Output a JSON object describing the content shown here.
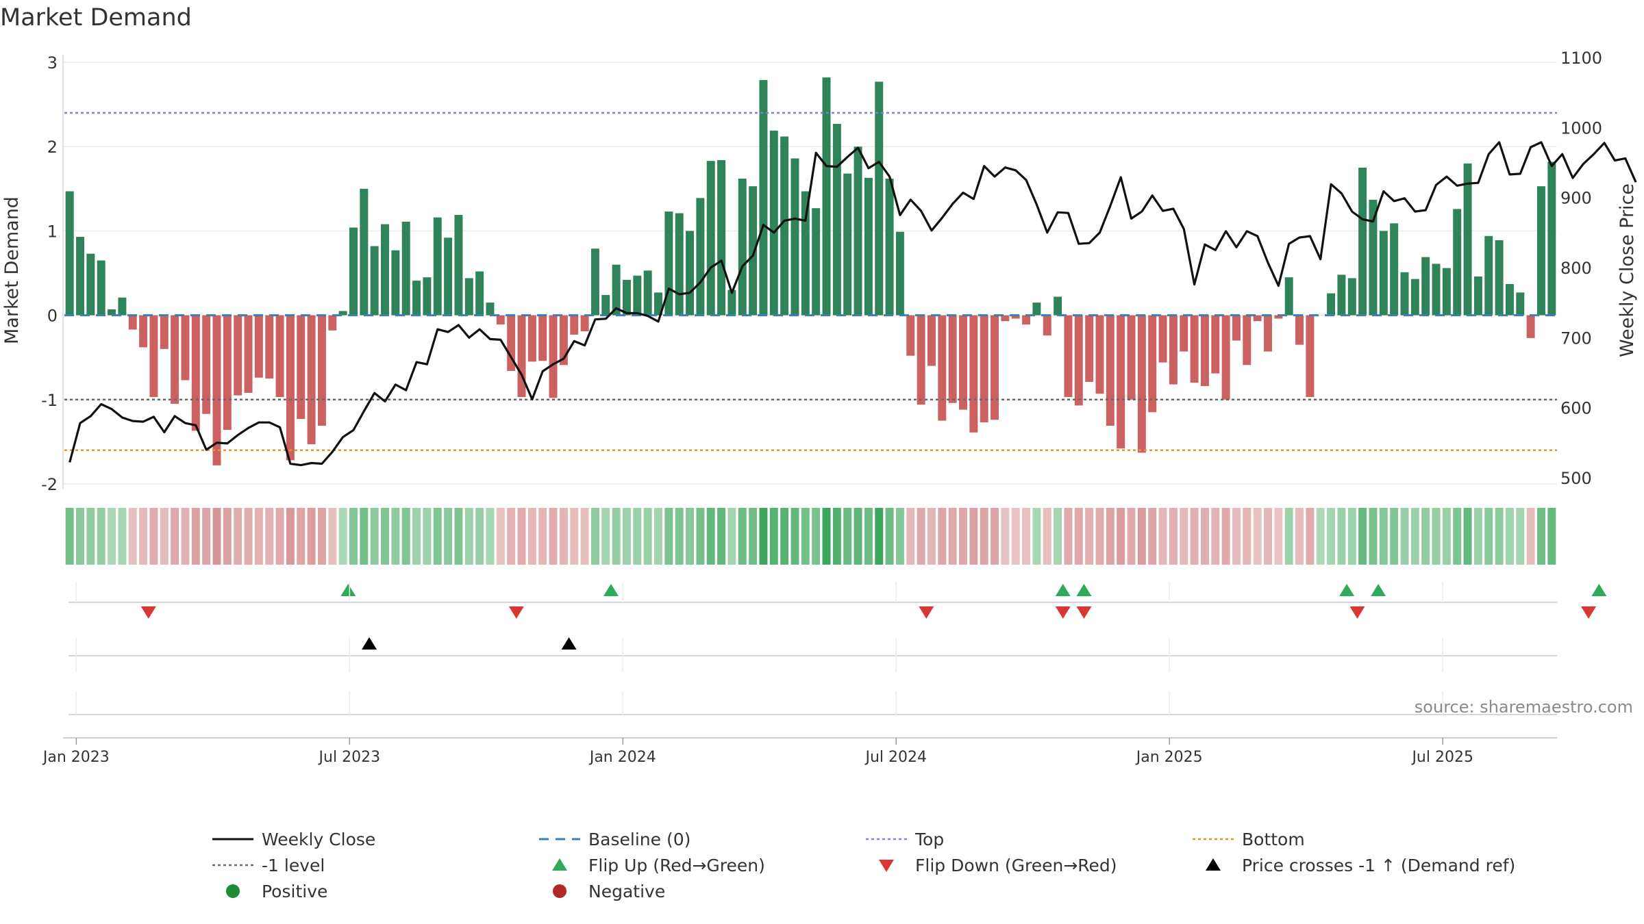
{
  "chart_data": {
    "type": "bar+line",
    "title": "Market Demand",
    "ylabel_left": "Market Demand",
    "ylabel_right": "Weekly Close Price",
    "ylim_left": [
      -2.0,
      3.0
    ],
    "ylim_right": [
      500,
      1100
    ],
    "yticks_left": [
      "3",
      "2",
      "1",
      "0",
      "-1",
      "-2"
    ],
    "yticks_right": [
      "1100",
      "1000",
      "900",
      "800",
      "700",
      "600",
      "500"
    ],
    "reference_lines": {
      "top": 2.4,
      "minus_one": -1.0,
      "bottom": -1.6,
      "baseline": 0
    },
    "x_ticks": [
      {
        "label": "Jan 2023",
        "week": 1
      },
      {
        "label": "Jul 2023",
        "week": 27
      },
      {
        "label": "Jan 2024",
        "week": 53
      },
      {
        "label": "Jul 2024",
        "week": 79
      },
      {
        "label": "Jan 2025",
        "week": 105
      },
      {
        "label": "Jul 2025",
        "week": 131
      }
    ],
    "series": [
      {
        "name": "Market Demand",
        "type": "bar",
        "values": [
          1.47,
          0.93,
          0.73,
          0.65,
          0.07,
          0.21,
          -0.17,
          -0.38,
          -0.97,
          -0.4,
          -1.05,
          -0.77,
          -1.37,
          -1.17,
          -1.78,
          -1.36,
          -0.95,
          -0.92,
          -0.74,
          -0.75,
          -0.97,
          -1.72,
          -1.23,
          -1.53,
          -1.31,
          -0.18,
          0.05,
          1.04,
          1.5,
          0.82,
          1.08,
          0.77,
          1.11,
          0.41,
          0.45,
          1.16,
          0.92,
          1.19,
          0.44,
          0.52,
          0.15,
          -0.11,
          -0.66,
          -0.97,
          -0.55,
          -0.54,
          -0.98,
          -0.59,
          -0.23,
          -0.19,
          0.79,
          0.24,
          0.6,
          0.42,
          0.47,
          0.53,
          0.27,
          1.23,
          1.21,
          1.0,
          1.39,
          1.83,
          1.84,
          0.3,
          1.62,
          1.53,
          2.79,
          2.19,
          2.12,
          1.86,
          1.47,
          1.27,
          2.82,
          2.27,
          1.68,
          2.0,
          1.63,
          2.77,
          1.62,
          0.99,
          -0.48,
          -1.06,
          -0.6,
          -1.25,
          -1.04,
          -1.12,
          -1.39,
          -1.27,
          -1.24,
          -0.07,
          -0.04,
          -0.11,
          0.15,
          -0.24,
          0.22,
          -0.97,
          -1.07,
          -0.79,
          -0.93,
          -1.31,
          -1.58,
          -1.0,
          -1.63,
          -1.15,
          -0.56,
          -0.82,
          -0.43,
          -0.8,
          -0.84,
          -0.69,
          -1.0,
          -0.3,
          -0.59,
          -0.07,
          -0.43,
          -0.04,
          0.45,
          -0.35,
          -0.97,
          0.0,
          0.26,
          0.48,
          0.44,
          1.75,
          1.37,
          1.0,
          1.09,
          0.51,
          0.43,
          0.69,
          0.61,
          0.56,
          1.26,
          1.8,
          0.46,
          0.94,
          0.89,
          0.37,
          0.27,
          -0.27,
          1.53,
          1.82
        ]
      },
      {
        "name": "Weekly Close",
        "type": "line",
        "axis": "right",
        "values": [
          522,
          578,
          588,
          605,
          598,
          586,
          581,
          580,
          587,
          565,
          588,
          578,
          575,
          540,
          550,
          549,
          561,
          571,
          579,
          579,
          572,
          520,
          518,
          521,
          520,
          537,
          558,
          568,
          595,
          621,
          609,
          633,
          625,
          665,
          662,
          712,
          708,
          718,
          700,
          712,
          698,
          697,
          672,
          647,
          612,
          652,
          662,
          670,
          695,
          689,
          726,
          727,
          742,
          735,
          735,
          731,
          723,
          770,
          762,
          764,
          779,
          800,
          810,
          764,
          802,
          817,
          861,
          850,
          867,
          870,
          867,
          964,
          945,
          944,
          958,
          971,
          942,
          951,
          930,
          875,
          897,
          881,
          853,
          871,
          891,
          907,
          898,
          945,
          930,
          943,
          939,
          925,
          890,
          850,
          879,
          878,
          834,
          835,
          850,
          888,
          929,
          870,
          880,
          903,
          881,
          884,
          855,
          776,
          833,
          825,
          852,
          829,
          852,
          845,
          807,
          774,
          834,
          843,
          845,
          812,
          919,
          906,
          880,
          869,
          866,
          909,
          895,
          899,
          880,
          882,
          918,
          930,
          917,
          920,
          921,
          962,
          979,
          933,
          934,
          972,
          979,
          945,
          962,
          928,
          948,
          962,
          978,
          953,
          956,
          922
        ]
      }
    ],
    "flip_up_weeks": [
      27,
      52,
      95,
      97,
      122,
      125,
      146
    ],
    "flip_down_weeks": [
      8,
      43,
      82,
      95,
      97,
      123,
      145
    ],
    "price_cross_weeks": [
      29,
      48
    ],
    "source": "source: sharemaestro.com",
    "legend": [
      {
        "label": "Weekly Close",
        "kind": "line",
        "color": "#111111"
      },
      {
        "label": "Baseline (0)",
        "kind": "dash",
        "color": "#3a7fb5"
      },
      {
        "label": "Top",
        "kind": "dot",
        "color": "#7b7fd6"
      },
      {
        "label": "Bottom",
        "kind": "dot",
        "color": "#e8962f"
      },
      {
        "label": "-1 level",
        "kind": "dot",
        "color": "#6a6a6a"
      },
      {
        "label": "Flip Up (Red→Green)",
        "kind": "tri-up",
        "color": "#2eaa5a"
      },
      {
        "label": "Flip Down (Green→Red)",
        "kind": "tri-down",
        "color": "#d93636"
      },
      {
        "label": "Price crosses -1 ↑ (Demand ref)",
        "kind": "tri-up",
        "color": "#000000"
      },
      {
        "label": "Positive",
        "kind": "circle",
        "color": "#1f8a35"
      },
      {
        "label": "Negative",
        "kind": "circle",
        "color": "#b22828"
      }
    ],
    "colors": {
      "positive_bar": "#2e8458",
      "negative_bar": "#cc6161",
      "flip_up": "#2eaa5a",
      "flip_down": "#d93636",
      "price_cross": "#000000"
    }
  }
}
